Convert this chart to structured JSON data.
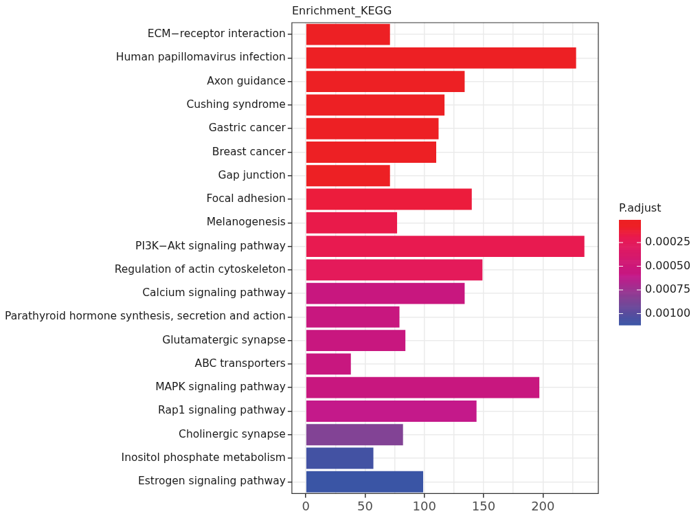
{
  "chart_data": {
    "type": "bar",
    "orientation": "horizontal",
    "title": "Enrichment_KEGG",
    "clabel": "P.adjust",
    "categories": [
      "ECM−receptor interaction",
      "Human papillomavirus infection",
      "Axon guidance",
      "Cushing syndrome",
      "Gastric cancer",
      "Breast cancer",
      "Gap junction",
      "Focal adhesion",
      "Melanogenesis",
      "PI3K−Akt signaling pathway",
      "Regulation of actin cytoskeleton",
      "Calcium signaling pathway",
      "Parathyroid hormone synthesis, secretion and action",
      "Glutamatergic synapse",
      "ABC transporters",
      "MAPK signaling pathway",
      "Rap1 signaling pathway",
      "Cholinergic synapse",
      "Inositol phosphate metabolism",
      "Estrogen signaling pathway"
    ],
    "values": [
      71,
      228,
      134,
      117,
      112,
      110,
      71,
      140,
      77,
      235,
      149,
      134,
      79,
      84,
      38,
      197,
      144,
      82,
      57,
      99
    ],
    "cvalues": [
      2e-05,
      2e-05,
      3e-05,
      4e-05,
      5e-05,
      6e-05,
      7e-05,
      0.00015,
      0.00018,
      0.0002,
      0.00025,
      0.00055,
      0.00056,
      0.00057,
      0.00058,
      0.00058,
      0.0006,
      0.00085,
      0.00108,
      0.00112
    ],
    "colors": [
      "#ed2024",
      "#ed2024",
      "#ed2024",
      "#ed2024",
      "#ed2024",
      "#ed2024",
      "#ed2024",
      "#ec1c3c",
      "#e91a4a",
      "#e81a50",
      "#e41a5a",
      "#c8177f",
      "#c8177f",
      "#c8177f",
      "#c8177f",
      "#c8177f",
      "#c4198a",
      "#824395",
      "#4352a3",
      "#3a55a5"
    ],
    "xlim": [
      -11.75,
      246.75
    ],
    "xticks": [
      0,
      {
        "value": 25,
        "label": null
      },
      50,
      {
        "value": 75,
        "label": null
      },
      100,
      {
        "value": 125,
        "label": null
      },
      150,
      {
        "value": 175,
        "label": null
      },
      200,
      {
        "value": 225,
        "label": null
      }
    ],
    "clim": [
      1e-05,
      0.00112
    ],
    "cticks": [
      {
        "value": 0.00025,
        "label": "0.00025"
      },
      {
        "value": 0.0005,
        "label": "0.00050"
      },
      {
        "value": 0.00075,
        "label": "0.00075"
      },
      {
        "value": 0.001,
        "label": "0.00100"
      }
    ],
    "grid": true,
    "legend": false
  }
}
